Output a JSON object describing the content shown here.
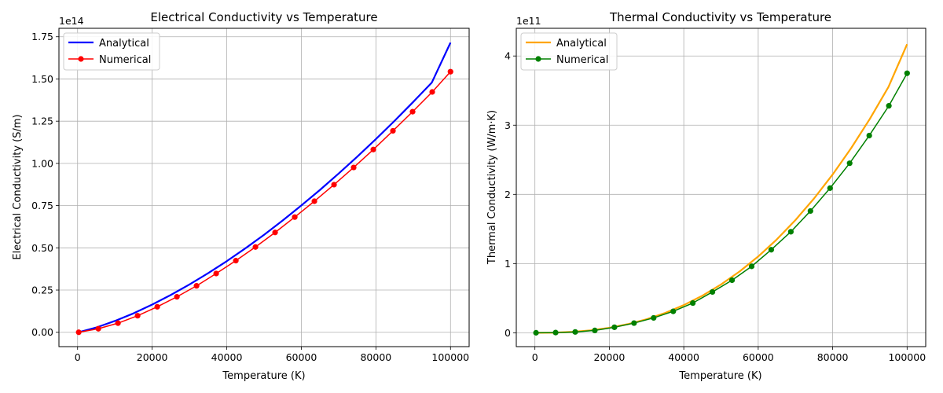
{
  "chart_data": [
    {
      "type": "line",
      "title": "Electrical Conductivity vs Temperature",
      "xlabel": "Temperature (K)",
      "ylabel": "Electrical Conductivity (S/m)",
      "y_offset_label": "1e14",
      "xlim": [
        -5000,
        105000
      ],
      "ylim": [
        -0.085,
        1.8
      ],
      "x_ticks": [
        0,
        20000,
        40000,
        60000,
        80000,
        100000
      ],
      "x_tick_labels": [
        "0",
        "20000",
        "40000",
        "60000",
        "80000",
        "100000"
      ],
      "y_ticks": [
        0,
        0.25,
        0.5,
        0.75,
        1.0,
        1.25,
        1.5,
        1.75
      ],
      "y_tick_labels": [
        "0.00",
        "0.25",
        "0.50",
        "0.75",
        "1.00",
        "1.25",
        "1.50",
        "1.75"
      ],
      "grid": true,
      "legend_position": "upper-left",
      "series": [
        {
          "name": "Analytical",
          "color": "#0000ff",
          "marker": "none",
          "x": [
            300,
            5000,
            10000,
            15000,
            20000,
            25000,
            30000,
            35000,
            40000,
            45000,
            50000,
            55000,
            60000,
            65000,
            70000,
            75000,
            80000,
            85000,
            90000,
            95000,
            100000
          ],
          "y": [
            0.0,
            0.028,
            0.067,
            0.112,
            0.164,
            0.221,
            0.283,
            0.35,
            0.421,
            0.497,
            0.577,
            0.662,
            0.751,
            0.843,
            0.94,
            1.04,
            1.144,
            1.252,
            1.364,
            1.479,
            1.715
          ]
        },
        {
          "name": "Numerical",
          "color": "#ff0000",
          "marker": "circle",
          "x": [
            300,
            5567,
            10833,
            16100,
            21367,
            26633,
            31900,
            37167,
            42433,
            47700,
            52967,
            58233,
            63500,
            68767,
            74033,
            79300,
            84567,
            89833,
            95100,
            100000
          ],
          "y": [
            0.0,
            0.021,
            0.054,
            0.098,
            0.151,
            0.21,
            0.275,
            0.348,
            0.424,
            0.505,
            0.591,
            0.682,
            0.776,
            0.874,
            0.976,
            1.082,
            1.193,
            1.306,
            1.423,
            1.543
          ]
        }
      ]
    },
    {
      "type": "line",
      "title": "Thermal Conductivity vs Temperature",
      "xlabel": "Temperature (K)",
      "ylabel": "Thermal Conductivity (W/m·K)",
      "y_offset_label": "1e11",
      "xlim": [
        -5000,
        105000
      ],
      "ylim": [
        -0.2,
        4.4
      ],
      "x_ticks": [
        0,
        20000,
        40000,
        60000,
        80000,
        100000
      ],
      "x_tick_labels": [
        "0",
        "20000",
        "40000",
        "60000",
        "80000",
        "100000"
      ],
      "y_ticks": [
        0,
        1,
        2,
        3,
        4
      ],
      "y_tick_labels": [
        "0",
        "1",
        "2",
        "3",
        "4"
      ],
      "grid": true,
      "legend_position": "upper-left",
      "series": [
        {
          "name": "Analytical",
          "color": "#ffa500",
          "marker": "none",
          "x": [
            300,
            5000,
            10000,
            15000,
            20000,
            25000,
            30000,
            35000,
            40000,
            45000,
            50000,
            55000,
            60000,
            65000,
            70000,
            75000,
            80000,
            85000,
            90000,
            95000,
            100000
          ],
          "y": [
            0.0,
            0.002,
            0.013,
            0.035,
            0.072,
            0.125,
            0.196,
            0.287,
            0.4,
            0.536,
            0.698,
            0.886,
            1.103,
            1.35,
            1.629,
            1.941,
            2.288,
            2.671,
            3.092,
            3.553,
            4.17
          ]
        },
        {
          "name": "Numerical",
          "color": "#008000",
          "marker": "circle",
          "x": [
            300,
            5567,
            10833,
            16100,
            21367,
            26633,
            31900,
            37167,
            42433,
            47700,
            52967,
            58233,
            63500,
            68767,
            74033,
            79300,
            84567,
            89833,
            95100,
            100000
          ],
          "y": [
            0.0,
            0.003,
            0.012,
            0.034,
            0.08,
            0.14,
            0.215,
            0.31,
            0.43,
            0.59,
            0.76,
            0.96,
            1.2,
            1.46,
            1.76,
            2.09,
            2.45,
            2.85,
            3.28,
            3.75
          ]
        }
      ]
    }
  ]
}
